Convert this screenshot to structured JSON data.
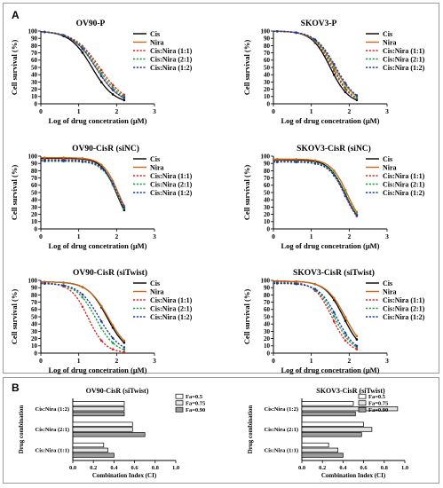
{
  "panel_a_label": "A",
  "panel_b_label": "B",
  "style": {
    "series_colors": [
      "#000000",
      "#c86a18",
      "#e02020",
      "#179a40",
      "#1a3aa8"
    ],
    "series_dash": [
      "solid",
      "solid",
      "dotted",
      "dotted",
      "dotted"
    ],
    "bar_fills": [
      "#ffffff",
      "#e4e4e4",
      "#9c9c9c"
    ]
  },
  "chart_data": [
    {
      "type": "line",
      "title": "OV90-P",
      "xlabel": "Log of  drug concetration (μM)",
      "ylabel": "Cell survival (%)",
      "xlim": [
        0,
        3
      ],
      "ylim": [
        0,
        100
      ],
      "xticks": [
        "0",
        "1",
        "2",
        "3"
      ],
      "yticks": [
        "0",
        "10",
        "20",
        "30",
        "40",
        "50",
        "60",
        "70",
        "80",
        "90",
        "100"
      ],
      "legend": [
        "Cis",
        "Nira",
        "Cis:Nira (1:1)",
        "Cis:Nira (2:1)",
        "Cis:Nira (1:2)"
      ],
      "series": [
        {
          "name": "Cis",
          "ic50": 1.35,
          "slope": 1.5,
          "top": 100,
          "bottom": 0
        },
        {
          "name": "Nira",
          "ic50": 1.45,
          "slope": 1.4,
          "top": 100,
          "bottom": 0
        },
        {
          "name": "Cis:Nira (1:1)",
          "ic50": 1.55,
          "slope": 1.3,
          "top": 100,
          "bottom": 0
        },
        {
          "name": "Cis:Nira (2:1)",
          "ic50": 1.5,
          "slope": 1.35,
          "top": 100,
          "bottom": 0
        },
        {
          "name": "Cis:Nira (1:2)",
          "ic50": 1.45,
          "slope": 1.4,
          "top": 100,
          "bottom": 0
        }
      ],
      "x_range": [
        0,
        2.2
      ]
    },
    {
      "type": "line",
      "title": "SKOV3-P",
      "xlabel": "Log of  drug concetration (μM)",
      "ylabel": "Cell survival (%)",
      "xlim": [
        0,
        3
      ],
      "ylim": [
        0,
        100
      ],
      "xticks": [
        "0",
        "1",
        "2",
        "3"
      ],
      "yticks": [
        "0",
        "10",
        "20",
        "30",
        "40",
        "50",
        "60",
        "70",
        "80",
        "90",
        "100"
      ],
      "legend": [
        "Cis",
        "Nira",
        "Cis:Nira (1:1)",
        "Cis:Nira (2:1)",
        "Cis:Nira (1:2)"
      ],
      "series": [
        {
          "name": "Cis",
          "ic50": 1.5,
          "slope": 1.8,
          "top": 100,
          "bottom": 0
        },
        {
          "name": "Nira",
          "ic50": 1.62,
          "slope": 1.6,
          "top": 100,
          "bottom": 0
        },
        {
          "name": "Cis:Nira (1:1)",
          "ic50": 1.55,
          "slope": 1.7,
          "top": 100,
          "bottom": 0
        },
        {
          "name": "Cis:Nira (2:1)",
          "ic50": 1.58,
          "slope": 1.7,
          "top": 100,
          "bottom": 0
        },
        {
          "name": "Cis:Nira (1:2)",
          "ic50": 1.65,
          "slope": 1.6,
          "top": 100,
          "bottom": 0
        }
      ],
      "x_range": [
        0,
        2.2
      ]
    },
    {
      "type": "line",
      "title": "OV90-CisR (siNC)",
      "xlabel": "Log of  drug concetration (μM)",
      "ylabel": "Cell survival (%)",
      "xlim": [
        0,
        3
      ],
      "ylim": [
        0,
        100
      ],
      "xticks": [
        "0",
        "1",
        "2",
        "3"
      ],
      "yticks": [
        "0",
        "10",
        "20",
        "30",
        "40",
        "50",
        "60",
        "70",
        "80",
        "90",
        "100"
      ],
      "legend": [
        "Cis",
        "Nira",
        "Cis:Nira (1:1)",
        "Cis:Nira (2:1)",
        "Cis:Nira (1:2)"
      ],
      "series": [
        {
          "name": "Cis",
          "ic50": 2.0,
          "slope": 2.2,
          "top": 97,
          "bottom": 0
        },
        {
          "name": "Nira",
          "ic50": 2.05,
          "slope": 2.1,
          "top": 98,
          "bottom": 0
        },
        {
          "name": "Cis:Nira (1:1)",
          "ic50": 2.02,
          "slope": 2.1,
          "top": 95,
          "bottom": 0
        },
        {
          "name": "Cis:Nira (2:1)",
          "ic50": 2.03,
          "slope": 2.1,
          "top": 93,
          "bottom": 0
        },
        {
          "name": "Cis:Nira (1:2)",
          "ic50": 2.04,
          "slope": 2.1,
          "top": 94,
          "bottom": 0
        }
      ],
      "x_range": [
        0,
        2.2
      ]
    },
    {
      "type": "line",
      "title": "SKOV3-CisR (siNC)",
      "xlabel": "Log of  drug concetration (μM)",
      "ylabel": "Cell survival (%)",
      "xlim": [
        0,
        3
      ],
      "ylim": [
        0,
        100
      ],
      "xticks": [
        "0",
        "1",
        "2",
        "3"
      ],
      "yticks": [
        "0",
        "10",
        "20",
        "30",
        "40",
        "50",
        "60",
        "70",
        "80",
        "90",
        "100"
      ],
      "legend": [
        "Cis",
        "Nira",
        "Cis:Nira (1:1)",
        "Cis:Nira (2:1)",
        "Cis:Nira (1:2)"
      ],
      "series": [
        {
          "name": "Cis",
          "ic50": 1.9,
          "slope": 2.0,
          "top": 95,
          "bottom": 0
        },
        {
          "name": "Nira",
          "ic50": 1.95,
          "slope": 2.0,
          "top": 96,
          "bottom": 0
        },
        {
          "name": "Cis:Nira (1:1)",
          "ic50": 1.88,
          "slope": 2.0,
          "top": 94,
          "bottom": 0
        },
        {
          "name": "Cis:Nira (2:1)",
          "ic50": 1.92,
          "slope": 2.0,
          "top": 93,
          "bottom": 0
        },
        {
          "name": "Cis:Nira (1:2)",
          "ic50": 1.9,
          "slope": 2.0,
          "top": 92,
          "bottom": 0
        }
      ],
      "x_range": [
        0,
        2.2
      ]
    },
    {
      "type": "line",
      "title": "OV90-CisR (siTwist)",
      "xlabel": "Log of  drug concetration (μM)",
      "ylabel": "Cell survival (%)",
      "xlim": [
        0,
        3
      ],
      "ylim": [
        0,
        100
      ],
      "xticks": [
        "0",
        "1",
        "2",
        "3"
      ],
      "yticks": [
        "0",
        "10",
        "20",
        "30",
        "40",
        "50",
        "60",
        "70",
        "80",
        "90",
        "100"
      ],
      "legend": [
        "Cis",
        "Nira",
        "Cis:Nira (1:1)",
        "Cis:Nira (2:1)",
        "Cis:Nira (1:2)"
      ],
      "series": [
        {
          "name": "Cis",
          "ic50": 1.75,
          "slope": 1.7,
          "top": 98,
          "bottom": 0
        },
        {
          "name": "Nira",
          "ic50": 1.78,
          "slope": 1.6,
          "top": 98,
          "bottom": 0
        },
        {
          "name": "Cis:Nira (1:1)",
          "ic50": 1.25,
          "slope": 1.9,
          "top": 97,
          "bottom": 0
        },
        {
          "name": "Cis:Nira (2:1)",
          "ic50": 1.45,
          "slope": 1.7,
          "top": 96,
          "bottom": 0
        },
        {
          "name": "Cis:Nira (1:2)",
          "ic50": 1.55,
          "slope": 1.6,
          "top": 96,
          "bottom": 0
        }
      ],
      "x_range": [
        0,
        2.2
      ]
    },
    {
      "type": "line",
      "title": "SKOV3-CisR (siTwist)",
      "xlabel": "Log of  drug concetration (μM)",
      "ylabel": "Cell survival (%)",
      "xlim": [
        0,
        3
      ],
      "ylim": [
        0,
        100
      ],
      "xticks": [
        "0",
        "1",
        "2",
        "3"
      ],
      "yticks": [
        "0",
        "10",
        "20",
        "30",
        "40",
        "50",
        "60",
        "70",
        "80",
        "90",
        "100"
      ],
      "legend": [
        "Cis",
        "Nira",
        "Cis:Nira (1:1)",
        "Cis:Nira (2:1)",
        "Cis:Nira (1:2)"
      ],
      "series": [
        {
          "name": "Cis",
          "ic50": 1.85,
          "slope": 1.8,
          "top": 99,
          "bottom": 0
        },
        {
          "name": "Nira",
          "ic50": 1.9,
          "slope": 1.7,
          "top": 99,
          "bottom": 0
        },
        {
          "name": "Cis:Nira (1:1)",
          "ic50": 1.55,
          "slope": 1.9,
          "top": 98,
          "bottom": 0
        },
        {
          "name": "Cis:Nira (2:1)",
          "ic50": 1.62,
          "slope": 1.8,
          "top": 97,
          "bottom": 0
        },
        {
          "name": "Cis:Nira (1:2)",
          "ic50": 1.68,
          "slope": 1.8,
          "top": 96,
          "bottom": 0
        }
      ],
      "x_range": [
        0,
        2.2
      ]
    },
    {
      "type": "bar",
      "orientation": "horizontal",
      "title": "OV90-CisR  (siTwist)",
      "xlabel": "Combination Index (CI)",
      "ylabel": "Drug combination",
      "xlim": [
        0,
        1.0
      ],
      "xticks": [
        "0.0",
        "0.2",
        "0.4",
        "0.6",
        "0.8",
        "1.0"
      ],
      "categories": [
        "Cis:Nira (1:2)",
        "Cis:Nira (2:1)",
        "Cis:Nira (1:1)"
      ],
      "series": [
        {
          "name": "Fa=0.5",
          "values": [
            0.5,
            0.58,
            0.3
          ]
        },
        {
          "name": "Fa=0.75",
          "values": [
            0.5,
            0.58,
            0.34
          ]
        },
        {
          "name": "Fa=0.90",
          "values": [
            0.5,
            0.7,
            0.4
          ]
        }
      ],
      "legend": [
        "Fa=0.5",
        "Fa=0.75",
        "Fa=0.90"
      ]
    },
    {
      "type": "bar",
      "orientation": "horizontal",
      "title": "SKOV3-CisR  (siTwist)",
      "xlabel": "Combination Index (CI)",
      "ylabel": "Drug combination",
      "xlim": [
        0,
        1.0
      ],
      "xticks": [
        "0.0",
        "0.2",
        "0.4",
        "0.6",
        "0.8",
        "1.0"
      ],
      "categories": [
        "Cis:Nira (1:2)",
        "Cis:Nira (2:1)",
        "Cis:Nira (1:1)"
      ],
      "series": [
        {
          "name": "Fa=0.5",
          "values": [
            0.5,
            0.6,
            0.26
          ]
        },
        {
          "name": "Fa=0.75",
          "values": [
            0.93,
            0.68,
            0.35
          ]
        },
        {
          "name": "Fa=0.90",
          "values": [
            0.52,
            0.58,
            0.4
          ]
        }
      ],
      "legend": [
        "Fa=0.5",
        "Fa=0.75",
        "Fa=0.90"
      ]
    }
  ]
}
